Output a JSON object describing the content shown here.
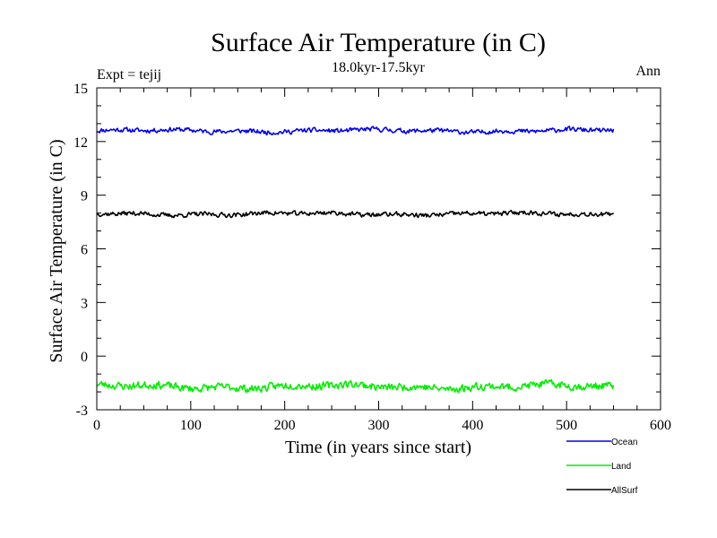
{
  "chart_data": {
    "type": "line",
    "title": "Surface Air Temperature (in C)",
    "subtitle": "18.0kyr-17.5kyr",
    "left_label": "Expt = tejij",
    "right_label": "Ann",
    "xlabel": "Time (in years since start)",
    "ylabel": "Surface Air Temperature (in C)",
    "xlim": [
      0,
      600
    ],
    "ylim": [
      -3,
      15
    ],
    "xticks": [
      0,
      100,
      200,
      300,
      400,
      500,
      600
    ],
    "yticks": [
      -3,
      0,
      3,
      6,
      9,
      12,
      15
    ],
    "x_start": 0,
    "x_end": 550,
    "x_step": 1,
    "series": [
      {
        "name": "Ocean",
        "color": "#0000ee",
        "mean": 12.6,
        "amplitude": 0.15,
        "seed": 11
      },
      {
        "name": "Land",
        "color": "#00ee00",
        "mean": -1.7,
        "amplitude": 0.25,
        "seed": 23
      },
      {
        "name": "AllSurf",
        "color": "#000000",
        "mean": 7.95,
        "amplitude": 0.15,
        "seed": 37
      }
    ]
  }
}
